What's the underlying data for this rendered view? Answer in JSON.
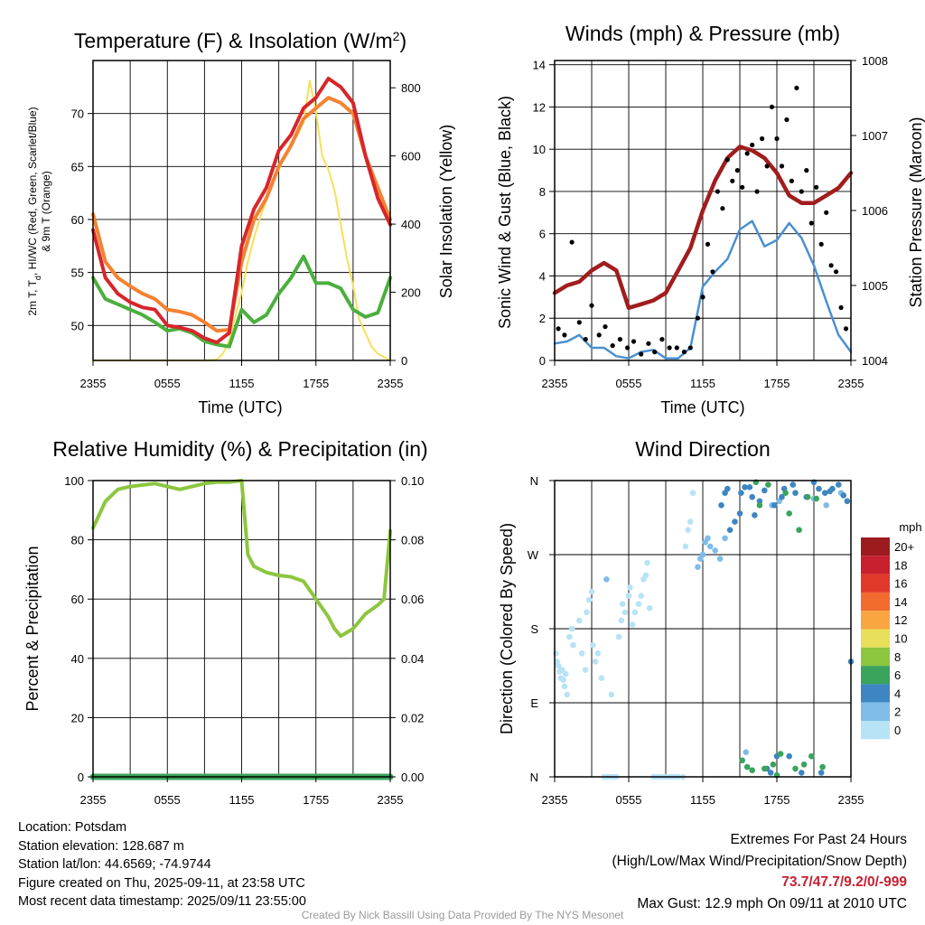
{
  "panels": {
    "temperature": {
      "title": "Temperature (F) & Insolation (W/m",
      "title_sup": "2",
      "title_close": ")",
      "ylabel_line1": "2m T, T",
      "ylabel_sub": "d",
      "ylabel_line1b": ", HI/WC (Red, Green, Scarlet/Blue)",
      "ylabel_line2": "& 9m T (Orange)",
      "y2label": "Solar Insolation (Yellow)",
      "xlabel": "Time (UTC)",
      "xticks": [
        "2355",
        "0555",
        "1155",
        "1755",
        "2355"
      ],
      "yticks": [
        "50",
        "55",
        "60",
        "65",
        "70"
      ],
      "y2ticks": [
        "0",
        "200",
        "400",
        "600",
        "800"
      ]
    },
    "winds": {
      "title": "Winds (mph) & Pressure (mb)",
      "ylabel": "Sonic Wind & Gust (Blue, Black)",
      "y2label": "Station Pressure (Maroon)",
      "xlabel": "Time (UTC)",
      "xticks": [
        "2355",
        "0555",
        "1155",
        "1755",
        "2355"
      ],
      "yticks": [
        "0",
        "2",
        "4",
        "6",
        "8",
        "10",
        "12",
        "14"
      ],
      "y2ticks": [
        "1004",
        "1005",
        "1006",
        "1007",
        "1008"
      ]
    },
    "humidity": {
      "title": "Relative Humidity (%) & Precipitation (in)",
      "ylabel": "Percent & Precipitation",
      "xticks": [
        "2355",
        "0555",
        "1155",
        "1755",
        "2355"
      ],
      "yticks": [
        "0",
        "20",
        "40",
        "60",
        "80",
        "100"
      ],
      "y2ticks": [
        "0.00",
        "0.02",
        "0.04",
        "0.06",
        "0.08",
        "0.10"
      ]
    },
    "direction": {
      "title": "Wind Direction",
      "ylabel": "Direction (Colored By Speed)",
      "xticks": [
        "2355",
        "0555",
        "1155",
        "1755",
        "2355"
      ],
      "yticks": [
        "N",
        "E",
        "S",
        "W",
        "N"
      ],
      "legend_title": "mph",
      "legend": [
        {
          "label": "20+",
          "color": "#9b1b1e"
        },
        {
          "label": "18",
          "color": "#c8202f"
        },
        {
          "label": "16",
          "color": "#e0382b"
        },
        {
          "label": "14",
          "color": "#f26b2e"
        },
        {
          "label": "12",
          "color": "#f9a541"
        },
        {
          "label": "10",
          "color": "#e8df5a"
        },
        {
          "label": "8",
          "color": "#8cc63f"
        },
        {
          "label": "6",
          "color": "#3aa35c"
        },
        {
          "label": "4",
          "color": "#3e86c1"
        },
        {
          "label": "2",
          "color": "#7fbce8"
        },
        {
          "label": "0",
          "color": "#b8e3f6"
        }
      ]
    }
  },
  "chart_data": [
    {
      "type": "line",
      "title": "Temperature (F) & Insolation (W/m2)",
      "xlabel": "Time (UTC)",
      "x_range": [
        "2355",
        "2355"
      ],
      "ylim": [
        46.7,
        75
      ],
      "y2lim": [
        0,
        880
      ],
      "series": [
        {
          "color": "#d7262b",
          "axis": "left",
          "x": [
            0,
            1,
            2,
            3,
            4,
            5,
            6,
            7,
            8,
            9,
            10,
            11,
            12,
            13,
            14,
            15,
            16,
            17,
            18,
            19,
            20,
            21,
            22,
            23,
            24
          ],
          "y": [
            59,
            54.5,
            53,
            52.2,
            51.7,
            51.5,
            50,
            49.8,
            49.5,
            48.8,
            48.4,
            49.3,
            57.5,
            61,
            63,
            66.5,
            68,
            70.5,
            71.5,
            73.3,
            72.5,
            71,
            66,
            62,
            59.5
          ]
        },
        {
          "color": "#f58231",
          "axis": "left",
          "x": [
            0,
            1,
            2,
            3,
            4,
            5,
            6,
            7,
            8,
            9,
            10,
            11,
            12,
            13,
            14,
            15,
            16,
            17,
            18,
            19,
            20,
            21,
            22,
            23,
            24
          ],
          "y": [
            60.5,
            56,
            54.5,
            53.7,
            53,
            52.5,
            51.5,
            51.3,
            51,
            50.3,
            49.5,
            49.6,
            56,
            60,
            62,
            65,
            67,
            69.5,
            70.5,
            71.5,
            71,
            70,
            66,
            63,
            60
          ]
        },
        {
          "color": "#4caf3f",
          "axis": "left",
          "x": [
            0,
            1,
            2,
            3,
            4,
            5,
            6,
            7,
            8,
            9,
            10,
            11,
            12,
            13,
            14,
            15,
            16,
            17,
            18,
            19,
            20,
            21,
            22,
            23,
            24
          ],
          "y": [
            54.5,
            52.5,
            52,
            51.5,
            51,
            50.3,
            49.5,
            49.7,
            49.3,
            48.5,
            48.2,
            48,
            51.5,
            50.3,
            51,
            53,
            54.5,
            56.5,
            54,
            54,
            53.5,
            51.5,
            50.8,
            51.2,
            54.5
          ]
        },
        {
          "color": "#f6e05a",
          "axis": "right",
          "x": [
            0,
            3,
            6,
            9,
            10,
            10.5,
            11,
            11.5,
            12,
            12.5,
            13,
            13.5,
            14,
            14.5,
            15,
            15.5,
            16,
            16.5,
            17,
            17.5,
            18,
            18.5,
            19,
            19.5,
            20,
            20.5,
            21,
            21.5,
            22,
            22.5,
            23,
            23.5,
            24
          ],
          "y": [
            0,
            0,
            0,
            0,
            2,
            20,
            60,
            130,
            200,
            290,
            360,
            420,
            470,
            520,
            560,
            600,
            640,
            660,
            700,
            820,
            730,
            600,
            560,
            500,
            400,
            300,
            220,
            120,
            80,
            40,
            20,
            10,
            0
          ]
        }
      ]
    },
    {
      "type": "line",
      "title": "Winds (mph) & Pressure (mb)",
      "xlabel": "Time (UTC)",
      "ylim": [
        0,
        14.2
      ],
      "y2lim": [
        1004,
        1008
      ],
      "series": [
        {
          "color": "#4a90d0",
          "axis": "left",
          "x": [
            0,
            1,
            2,
            3,
            4,
            5,
            6,
            7,
            8,
            9,
            10,
            11,
            12,
            13,
            14,
            15,
            16,
            17,
            18,
            19,
            20,
            21,
            22,
            23,
            24
          ],
          "y": [
            0.8,
            0.9,
            1.2,
            0.6,
            0.6,
            0.2,
            0.1,
            0.4,
            0.5,
            0.1,
            0.1,
            0.6,
            3.5,
            4.2,
            4.8,
            6.2,
            6.6,
            5.4,
            5.7,
            6.5,
            5.8,
            4.5,
            2.8,
            1.2,
            0.4
          ]
        },
        {
          "color": "#a11d1d",
          "axis": "right",
          "x": [
            0,
            1,
            2,
            3,
            4,
            5,
            6,
            7,
            8,
            9,
            10,
            11,
            12,
            13,
            14,
            15,
            16,
            17,
            18,
            19,
            20,
            21,
            22,
            23,
            24
          ],
          "y": [
            1004.9,
            1005.0,
            1005.05,
            1005.2,
            1005.3,
            1005.2,
            1004.7,
            1004.75,
            1004.8,
            1004.9,
            1005.2,
            1005.5,
            1006.0,
            1006.4,
            1006.7,
            1006.85,
            1006.8,
            1006.7,
            1006.5,
            1006.2,
            1006.1,
            1006.1,
            1006.2,
            1006.3,
            1006.5
          ]
        },
        {
          "color": "#000000",
          "axis": "left",
          "type": "scatter",
          "x": [
            0.3,
            0.8,
            1.4,
            2.0,
            2.5,
            3.0,
            3.6,
            4.1,
            4.7,
            5.3,
            5.9,
            6.4,
            7.0,
            7.6,
            8.1,
            8.7,
            9.3,
            9.9,
            10.5,
            11.0,
            11.6,
            12.0,
            12.4,
            12.8,
            13.2,
            13.6,
            14.0,
            14.4,
            14.8,
            15.2,
            15.6,
            16.0,
            16.4,
            16.8,
            17.2,
            17.6,
            18.0,
            18.4,
            18.8,
            19.2,
            19.6,
            20.0,
            20.4,
            20.8,
            21.2,
            21.6,
            22.0,
            22.4,
            22.8,
            23.2,
            23.6
          ],
          "y": [
            1.5,
            1.2,
            5.6,
            1.8,
            1.0,
            2.6,
            1.2,
            1.6,
            0.7,
            1.0,
            0.6,
            0.9,
            0.3,
            0.8,
            0.4,
            1.0,
            0.6,
            0.6,
            0.4,
            0.6,
            2.0,
            3.0,
            5.5,
            4.2,
            8.0,
            7.2,
            9.5,
            8.5,
            9.0,
            8.2,
            9.8,
            10.2,
            8.0,
            10.5,
            9.2,
            12.0,
            10.5,
            9.2,
            11.4,
            8.5,
            12.9,
            8.0,
            9.0,
            6.5,
            8.2,
            5.5,
            7.0,
            4.5,
            4.2,
            2.5,
            1.5
          ]
        }
      ]
    },
    {
      "type": "line",
      "title": "Relative Humidity (%) & Precipitation (in)",
      "ylim": [
        0,
        100
      ],
      "y2lim": [
        0,
        0.1
      ],
      "series": [
        {
          "color": "#8cc63f",
          "axis": "left",
          "x": [
            0,
            1,
            2,
            3,
            4,
            5,
            6,
            7,
            8,
            9,
            10,
            11,
            12,
            12.5,
            13,
            14,
            15,
            16,
            17,
            18,
            19,
            19.5,
            20,
            21,
            22,
            23,
            23.5,
            24
          ],
          "y": [
            84,
            93,
            97,
            98,
            98.5,
            99,
            98,
            97,
            98,
            99,
            99.5,
            99.5,
            100,
            75,
            71,
            69,
            68,
            67.5,
            66,
            60,
            54,
            50,
            47.5,
            50,
            55,
            58,
            60,
            83
          ]
        },
        {
          "color": "#3aa35c",
          "axis": "right",
          "x": [
            0,
            24
          ],
          "y": [
            0,
            0
          ]
        }
      ]
    },
    {
      "type": "scatter",
      "title": "Wind Direction",
      "ylabel": "Direction (Colored By Speed)",
      "yticks": [
        "N",
        "E",
        "S",
        "W",
        "N"
      ],
      "ylim": [
        0,
        360
      ],
      "legend": {
        "title": "mph",
        "position": "right"
      },
      "series": [
        {
          "color": "#b8e3f6",
          "x": [
            0.1,
            0.2,
            0.3,
            0.4,
            0.5,
            0.6,
            0.7,
            0.8,
            0.9,
            1.0,
            1.2,
            1.4,
            1.5,
            2.0,
            2.2,
            2.5,
            2.6,
            2.8,
            3.0,
            3.1,
            3.3,
            3.5,
            3.8,
            4.0,
            4.2,
            4.5,
            4.6,
            4.8,
            5.0,
            5.2,
            5.4,
            5.5,
            5.7,
            6.0,
            6.1,
            6.3,
            6.5,
            6.8,
            7.0,
            7.2,
            7.4,
            7.5,
            7.7,
            8.0,
            8.2,
            8.5,
            8.8,
            9.0,
            9.3,
            9.5,
            9.8,
            10.0,
            10.4,
            10.6,
            10.8,
            11.0,
            11.2
          ],
          "y": [
            150,
            140,
            135,
            128,
            120,
            130,
            118,
            110,
            125,
            100,
            170,
            180,
            160,
            190,
            150,
            130,
            200,
            215,
            225,
            160,
            140,
            150,
            120,
            0,
            0,
            0,
            100,
            0,
            0,
            170,
            190,
            210,
            200,
            220,
            230,
            185,
            200,
            210,
            220,
            240,
            245,
            260,
            205,
            0,
            0,
            0,
            0,
            0,
            0,
            0,
            0,
            0,
            0,
            280,
            300,
            310,
            345
          ]
        },
        {
          "color": "#7fbce8",
          "x": [
            4.2,
            11.6,
            11.8,
            12.0,
            12.2,
            12.4,
            12.6,
            13.0,
            13.4,
            13.8,
            15.5,
            17.6,
            18.2,
            21.0,
            22.0,
            23.2
          ],
          "y": [
            240,
            255,
            265,
            270,
            285,
            290,
            280,
            275,
            265,
            290,
            30,
            330,
            335,
            338,
            330,
            345
          ]
        },
        {
          "color": "#3e86c1",
          "x": [
            13.5,
            13.8,
            14.0,
            14.2,
            14.6,
            15.0,
            15.1,
            15.4,
            15.8,
            16.0,
            16.2,
            16.6,
            17.0,
            17.2,
            17.5,
            17.8,
            18.0,
            18.4,
            18.6,
            19.0,
            19.3,
            19.5,
            20.0,
            20.4,
            21.0,
            21.4,
            21.6,
            21.9,
            22.3,
            22.5,
            23.0,
            23.4,
            23.7,
            24.0
          ],
          "y": [
            330,
            345,
            350,
            300,
            310,
            320,
            345,
            352,
            352,
            340,
            318,
            335,
            348,
            10,
            5,
            330,
            25,
            340,
            350,
            25,
            355,
            345,
            5,
            340,
            358,
            350,
            5,
            345,
            347,
            350,
            355,
            342,
            335,
            140
          ]
        },
        {
          "color": "#3aa35c",
          "x": [
            15.2,
            15.6,
            16.0,
            16.3,
            16.6,
            17.0,
            17.3,
            17.7,
            18.0,
            18.3,
            18.7,
            19.0,
            19.5,
            19.8,
            20.2,
            20.5,
            20.8,
            21.2,
            21.7
          ],
          "y": [
            20,
            12,
            8,
            358,
            330,
            10,
            355,
            15,
            2,
            28,
            345,
            320,
            10,
            300,
            15,
            340,
            25,
            338,
            12
          ]
        }
      ]
    }
  ],
  "footer": {
    "location": "Location: Potsdam",
    "elevation": "Station elevation: 128.687 m",
    "latlon": "Station lat/lon: 44.6569; -74.9744",
    "created": "Figure created on Thu, 2025-09-11, at 23:58 UTC",
    "recent": "Most recent data timestamp: 2025/09/11 23:55:00",
    "extremes_title": "Extremes For Past 24 Hours",
    "extremes_legend": "(High/Low/Max Wind/Precipitation/Snow Depth)",
    "extremes_values": "73.7/47.7/9.2/0/-999",
    "max_gust": "Max Gust: 12.9 mph On 09/11 at 2010 UTC",
    "credit": "Created By Nick Bassill Using Data Provided By The NYS Mesonet"
  }
}
